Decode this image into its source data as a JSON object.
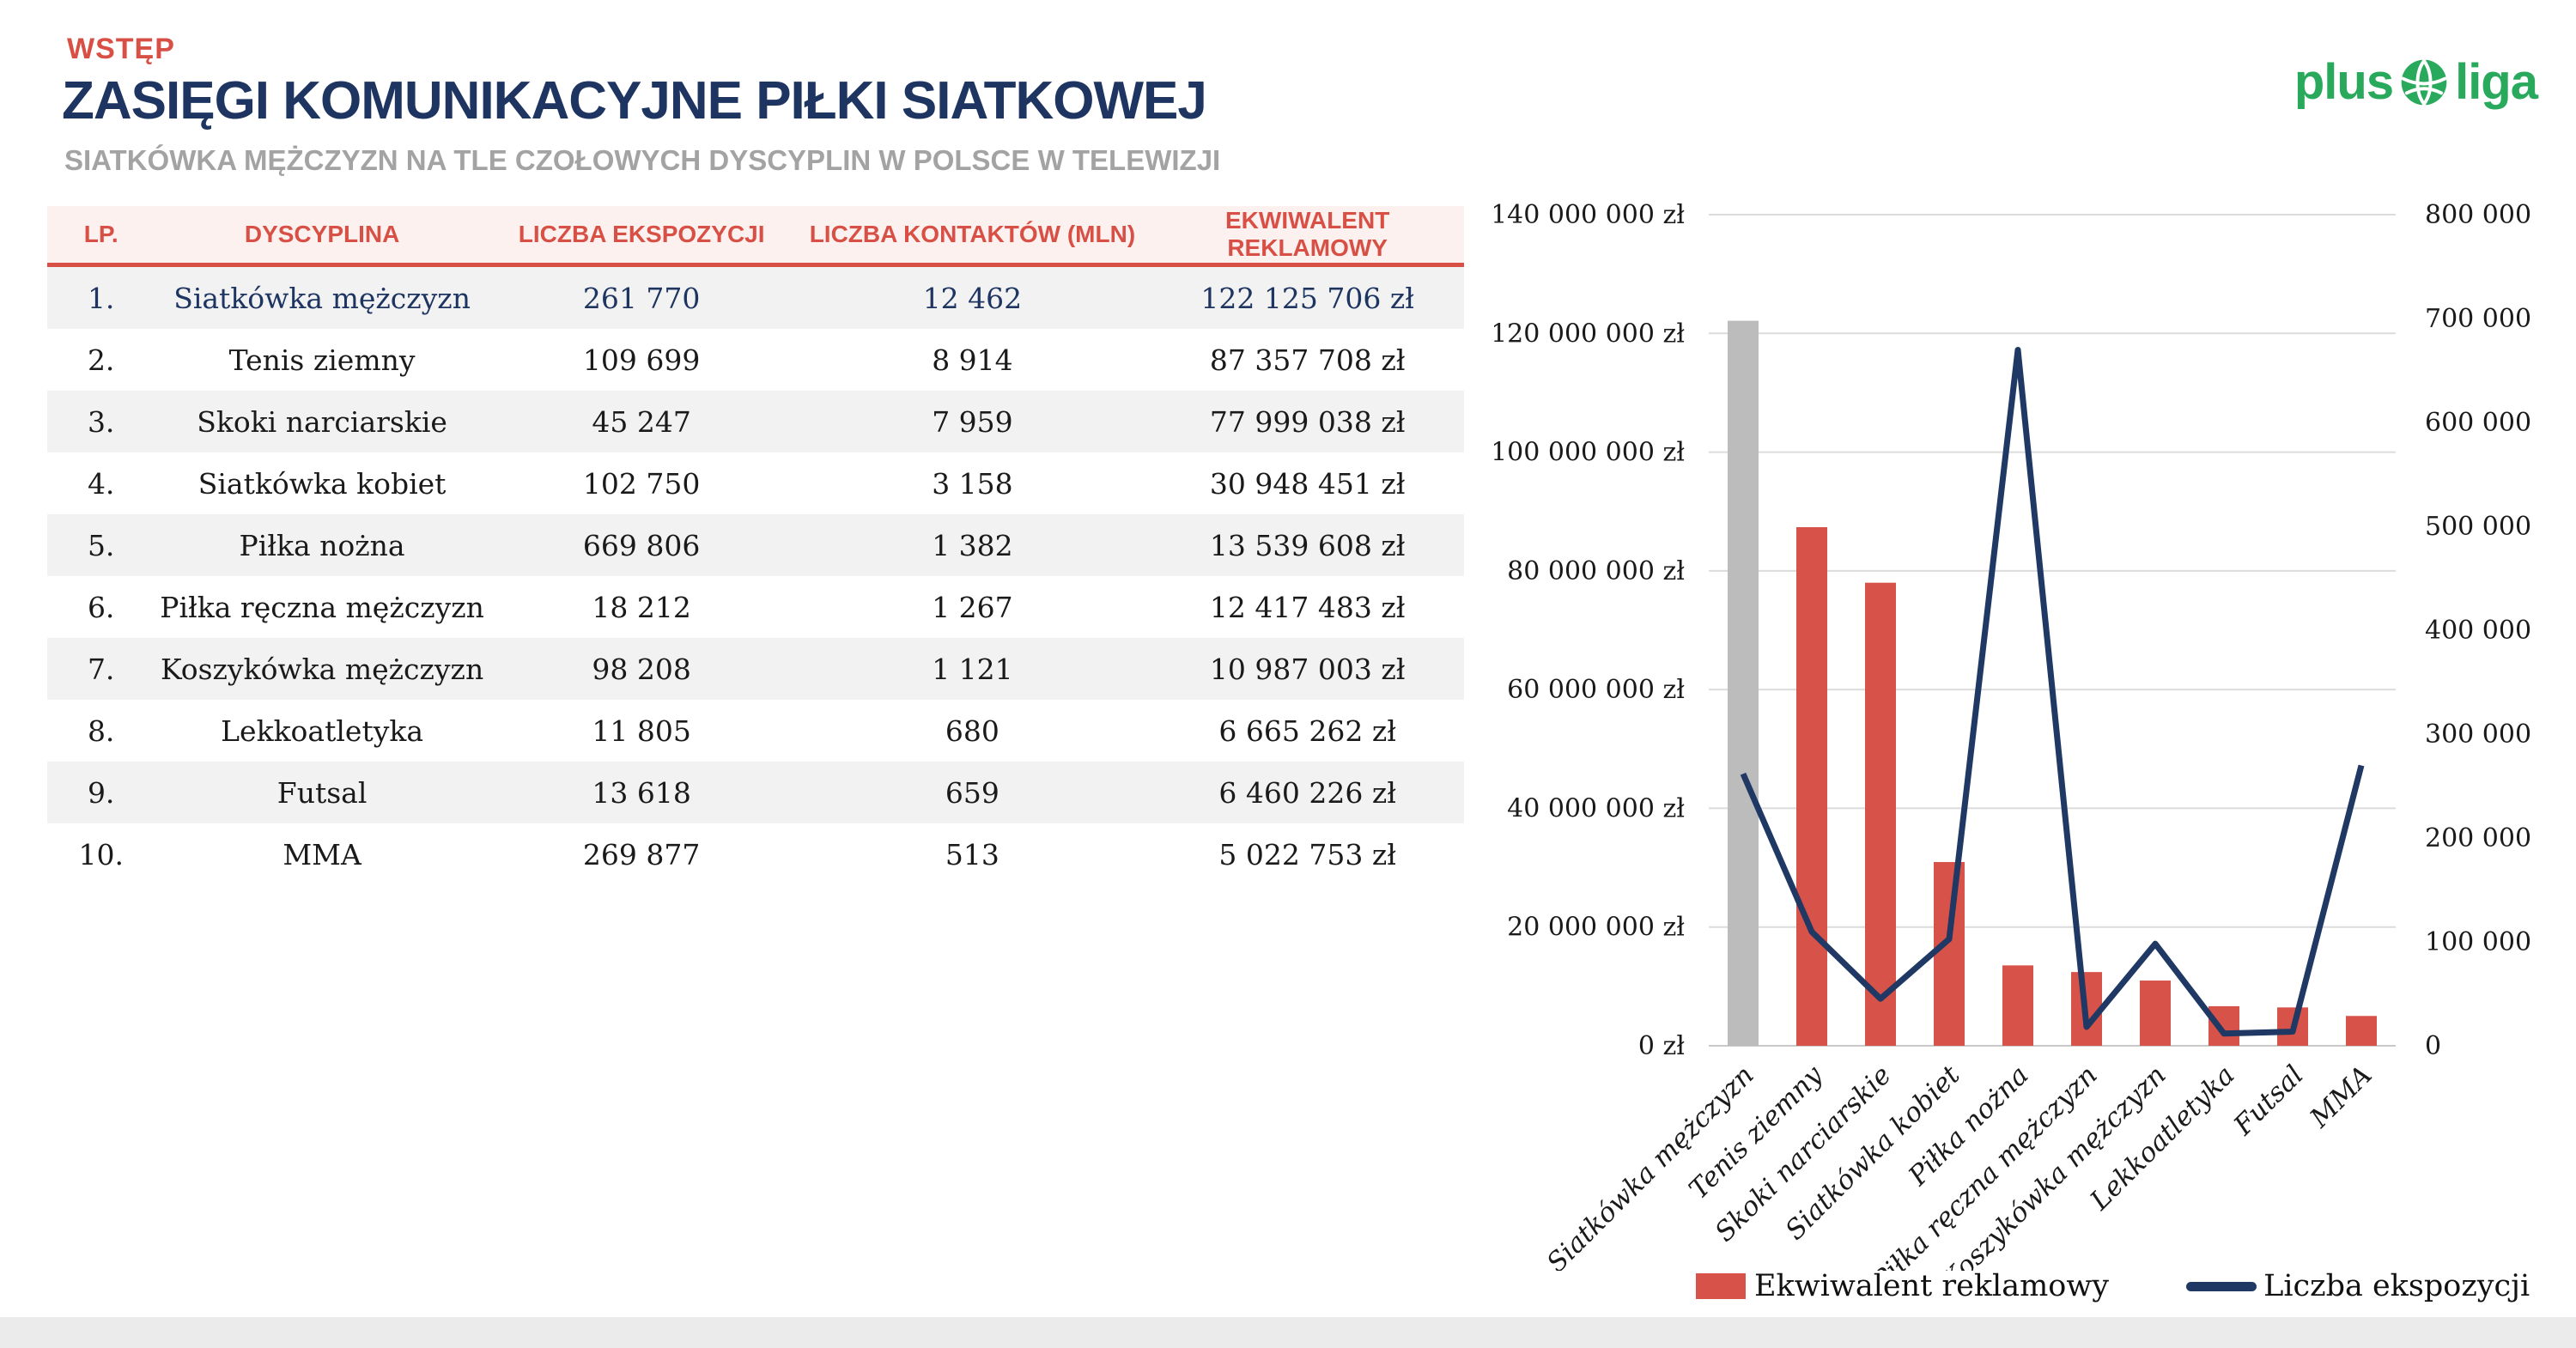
{
  "header": {
    "kicker": "WSTĘP",
    "title": "ZASIĘGI KOMUNIKACYJNE PIŁKI SIATKOWEJ",
    "subtitle": "SIATKÓWKA MĘŻCZYZN NA TLE CZOŁOWYCH DYSCYPLIN W POLSCE W TELEWIZJI"
  },
  "logo": {
    "plus": "plus",
    "liga": "liga"
  },
  "table": {
    "columns": [
      "LP.",
      "DYSCYPLINA",
      "LICZBA EKSPOZYCJI",
      "LICZBA KONTAKTÓW (MLN)",
      "EKWIWALENT REKLAMOWY"
    ],
    "highlight_row": 0,
    "rows": [
      [
        "1.",
        "Siatkówka mężczyzn",
        "261 770",
        "12 462",
        "122 125 706 zł"
      ],
      [
        "2.",
        "Tenis ziemny",
        "109 699",
        "8 914",
        "87 357 708 zł"
      ],
      [
        "3.",
        "Skoki narciarskie",
        "45 247",
        "7 959",
        "77 999 038 zł"
      ],
      [
        "4.",
        "Siatkówka kobiet",
        "102 750",
        "3 158",
        "30 948 451 zł"
      ],
      [
        "5.",
        "Piłka nożna",
        "669 806",
        "1 382",
        "13 539 608 zł"
      ],
      [
        "6.",
        "Piłka ręczna mężczyzn",
        "18 212",
        "1 267",
        "12 417 483 zł"
      ],
      [
        "7.",
        "Koszykówka mężczyzn",
        "98 208",
        "1 121",
        "10 987 003 zł"
      ],
      [
        "8.",
        "Lekkoatletyka",
        "11 805",
        "680",
        "6 665 262 zł"
      ],
      [
        "9.",
        "Futsal",
        "13 618",
        "659",
        "6 460 226 zł"
      ],
      [
        "10.",
        "MMA",
        "269 877",
        "513",
        "5 022 753 zł"
      ]
    ]
  },
  "chart_data": {
    "type": "bar",
    "categories": [
      "Siatkówka mężczyzn",
      "Tenis ziemny",
      "Skoki narciarskie",
      "Siatkówka kobiet",
      "Piłka nożna",
      "Piłka ręczna mężczyzn",
      "Koszykówka mężczyzn",
      "Lekkoatletyka",
      "Futsal",
      "MMA"
    ],
    "series": [
      {
        "name": "Ekwiwalent reklamowy",
        "type": "bar",
        "axis": "left",
        "values": [
          122125706,
          87357708,
          77999038,
          30948451,
          13539608,
          12417483,
          10987003,
          6665262,
          6460226,
          5022753
        ]
      },
      {
        "name": "Liczba ekspozycji",
        "type": "line",
        "axis": "right",
        "values": [
          261770,
          109699,
          45247,
          102750,
          669806,
          18212,
          98208,
          11805,
          13618,
          269877
        ]
      }
    ],
    "bar_highlight_index": 0,
    "left_axis": {
      "min": 0,
      "max": 140000000,
      "step": 20000000,
      "suffix": " zł"
    },
    "right_axis": {
      "min": 0,
      "max": 800000,
      "step": 100000,
      "suffix": ""
    },
    "grid": true,
    "legend_position": "bottom",
    "x_label_rotation": -45
  },
  "colors": {
    "accent_red": "#d85045",
    "navy": "#1e3461",
    "subtitle_gray": "#a3a3a3",
    "logo_green": "#29a95c",
    "bar_red": "#d75248",
    "bar_gray_highlight": "#bcbcbc",
    "line_navy": "#1f3864",
    "row_alt_bg": "#f2f2f2",
    "header_bg": "#fdf1ef",
    "gridline": "#dcdcdc",
    "axis_line": "#c9c9c9",
    "footer_band": "#ebebeb"
  }
}
